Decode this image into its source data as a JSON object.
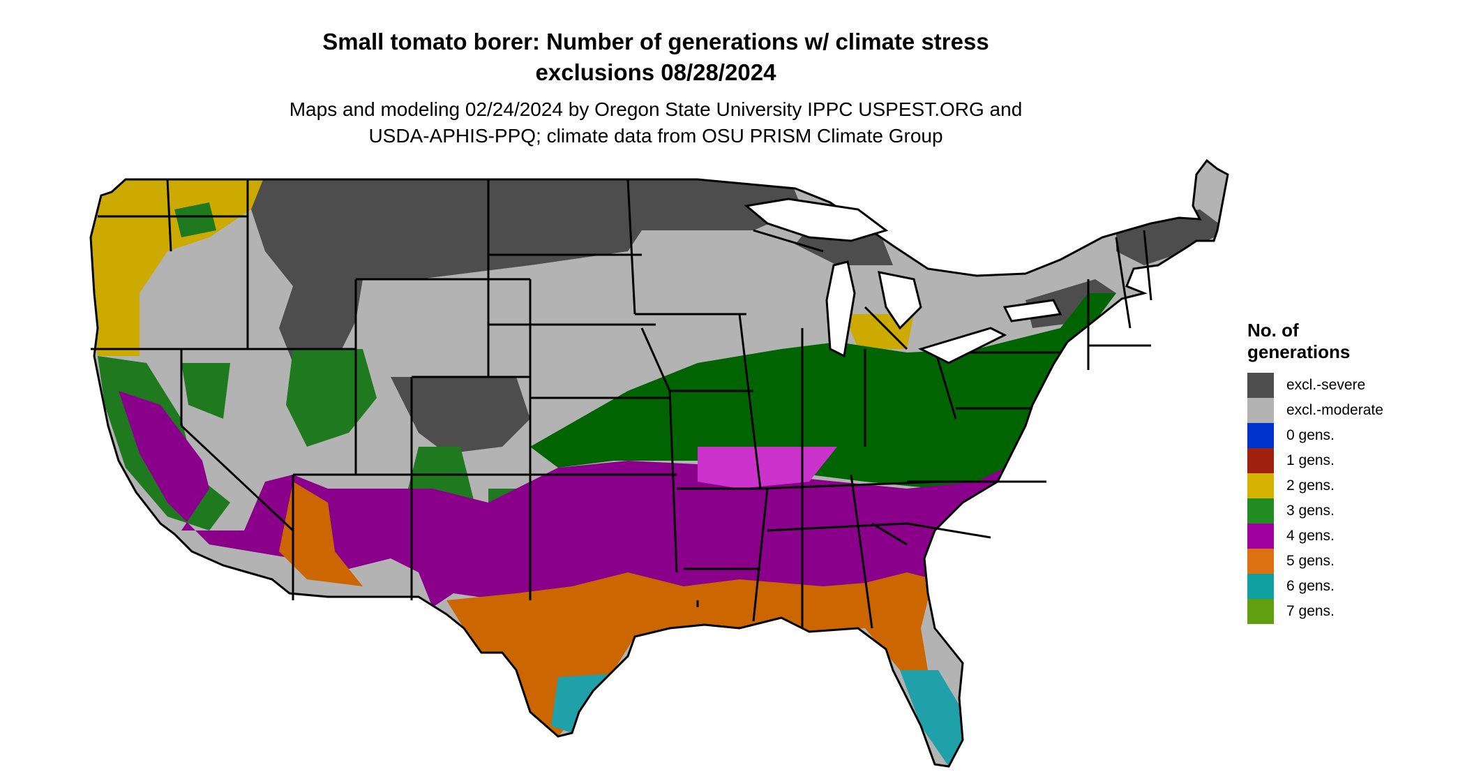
{
  "title_line1": "Small tomato borer: Number of generations w/ climate stress",
  "title_line2": "exclusions 08/28/2024",
  "subtitle_line1": "Maps and modeling 02/24/2024 by Oregon State University IPPC USPEST.ORG and",
  "subtitle_line2": "USDA-APHIS-PPQ; climate data from OSU PRISM Climate Group",
  "legend": {
    "title_line1": "No. of",
    "title_line2": "generations",
    "items": [
      {
        "label": "excl.-severe",
        "color": "#4d4d4d"
      },
      {
        "label": "excl.-moderate",
        "color": "#b3b3b3"
      },
      {
        "label": "0 gens.",
        "color": "#0033cc"
      },
      {
        "label": "1 gens.",
        "color": "#a02010"
      },
      {
        "label": "2 gens.",
        "color": "#d4b400"
      },
      {
        "label": "3 gens.",
        "color": "#228b22"
      },
      {
        "label": "4 gens.",
        "color": "#a000a0"
      },
      {
        "label": "5 gens.",
        "color": "#dd7010"
      },
      {
        "label": "6 gens.",
        "color": "#10a0a0"
      },
      {
        "label": "7 gens.",
        "color": "#60a010"
      }
    ]
  },
  "region_colors": {
    "dark_green": "#006400",
    "purple": "#8b008b",
    "orange": "#cc6600",
    "teal": "#20a0a8",
    "yellow": "#ccaa00",
    "dark_gray": "#4d4d4d",
    "light_gray": "#b3b3b3",
    "green": "#1f7a1f",
    "magenta": "#cc33cc",
    "red": "#a02010",
    "lime": "#60a010"
  }
}
